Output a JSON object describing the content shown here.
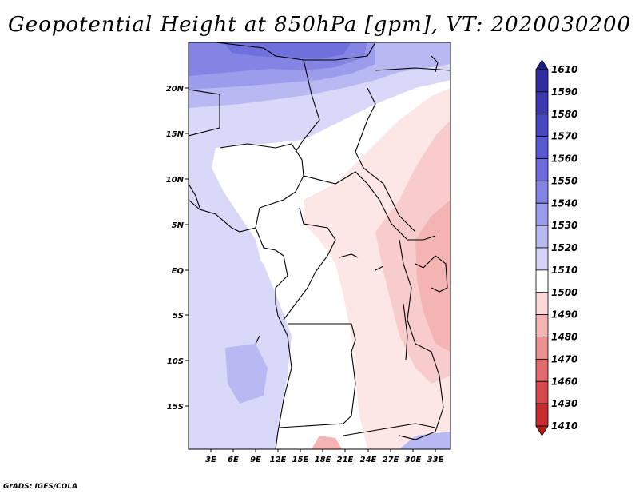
{
  "title": "Geopotential Height at 850hPa [gpm], VT: 2020030200",
  "credit": "GrADS: IGES/COLA",
  "map": {
    "lat_labels": [
      "20N",
      "15N",
      "10N",
      "5N",
      "EQ",
      "5S",
      "10S",
      "15S"
    ],
    "lon_labels": [
      "3E",
      "6E",
      "9E",
      "12E",
      "15E",
      "18E",
      "21E",
      "24E",
      "27E",
      "30E",
      "33E"
    ]
  },
  "colorbar": {
    "labels": [
      "1610",
      "1590",
      "1580",
      "1570",
      "1560",
      "1550",
      "1540",
      "1530",
      "1520",
      "1510",
      "1500",
      "1490",
      "1480",
      "1470",
      "1460",
      "1430",
      "1410"
    ],
    "colors": [
      "#1c1c8c",
      "#2e2e9e",
      "#3a3aae",
      "#4848c0",
      "#5a5ad0",
      "#6c6cdc",
      "#8484e4",
      "#9c9cec",
      "#b8b8f2",
      "#d4d4f8",
      "#ffffff",
      "#fcd8d8",
      "#f4b4b4",
      "#ec9090",
      "#e06c6c",
      "#d44a4a",
      "#c62e2e",
      "#b41c1c"
    ]
  }
}
